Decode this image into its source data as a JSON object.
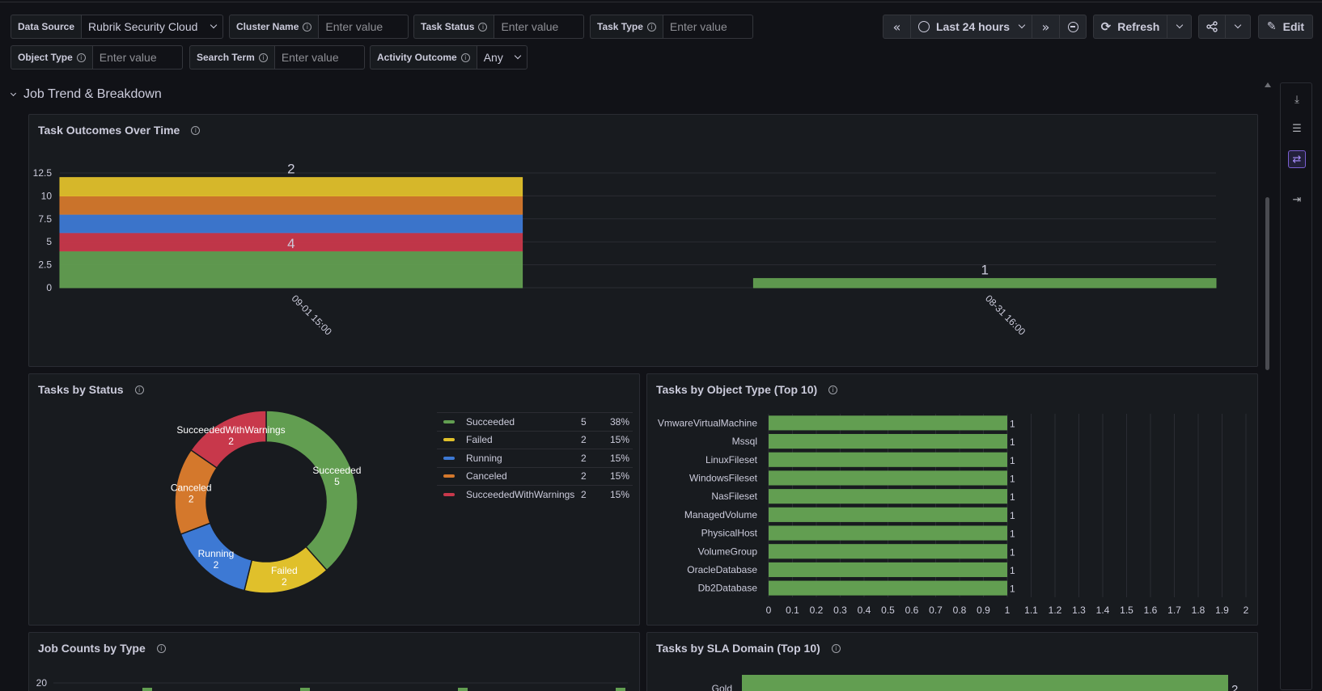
{
  "variables": {
    "data_source": {
      "label": "Data Source",
      "value": "Rubrik Security Cloud"
    },
    "cluster_name": {
      "label": "Cluster Name",
      "placeholder": "Enter value"
    },
    "task_status": {
      "label": "Task Status",
      "placeholder": "Enter value"
    },
    "task_type": {
      "label": "Task Type",
      "placeholder": "Enter value"
    },
    "object_type": {
      "label": "Object Type",
      "placeholder": "Enter value"
    },
    "search_term": {
      "label": "Search Term",
      "placeholder": "Enter value"
    },
    "activity_outcome": {
      "label": "Activity Outcome",
      "value": "Any"
    }
  },
  "toolbar": {
    "time_range": "Last 24 hours",
    "refresh_label": "Refresh",
    "edit_label": "Edit"
  },
  "row": {
    "title": "Job Trend & Breakdown"
  },
  "panels": {
    "outcomes_over_time": {
      "title": "Task Outcomes Over Time"
    },
    "tasks_by_status": {
      "title": "Tasks by Status"
    },
    "tasks_by_object_type": {
      "title": "Tasks by Object Type (Top 10)"
    },
    "job_counts_by_type": {
      "title": "Job Counts by Type"
    },
    "tasks_by_sla_domain": {
      "title": "Tasks by SLA Domain (Top 10)"
    }
  },
  "colors": {
    "green": "#629e51",
    "red": "#c8384b",
    "blue": "#3d79d4",
    "orange": "#d4782c",
    "yellow": "#e0c02b"
  },
  "chart_data": [
    {
      "type": "bar",
      "stacked": true,
      "title": "Task Outcomes Over Time",
      "categories": [
        "09-01 15:00",
        "08-31 16:00"
      ],
      "series": [
        {
          "name": "Succeeded",
          "values": [
            4,
            1
          ],
          "color": "#629e51"
        },
        {
          "name": "Failed",
          "values": [
            2,
            0
          ],
          "color": "#c8384b"
        },
        {
          "name": "Running",
          "values": [
            2,
            0
          ],
          "color": "#3d79d4"
        },
        {
          "name": "Canceled",
          "values": [
            2,
            0
          ],
          "color": "#d4782c"
        },
        {
          "name": "SucceededWithWarnings",
          "values": [
            2,
            0
          ],
          "color": "#e0c02b"
        }
      ],
      "data_labels": [
        {
          "category": "09-01 15:00",
          "text": "2"
        },
        {
          "category": "09-01 15:00",
          "text": "4"
        },
        {
          "category": "08-31 16:00",
          "text": "1"
        }
      ],
      "yticks": [
        "0",
        "2.5",
        "5",
        "7.5",
        "10",
        "12.5"
      ],
      "ylim": [
        0,
        12.5
      ],
      "legend": "bottom"
    },
    {
      "type": "pie",
      "donut": true,
      "title": "Tasks by Status",
      "slices": [
        {
          "name": "Succeeded",
          "value": 5,
          "percent": "38%",
          "color": "#629e51"
        },
        {
          "name": "Failed",
          "value": 2,
          "percent": "15%",
          "color": "#e0c02b"
        },
        {
          "name": "Running",
          "value": 2,
          "percent": "15%",
          "color": "#3d79d4"
        },
        {
          "name": "Canceled",
          "value": 2,
          "percent": "15%",
          "color": "#d4782c"
        },
        {
          "name": "SucceededWithWarnings",
          "value": 2,
          "percent": "15%",
          "color": "#c8384b"
        }
      ],
      "legend": "right"
    },
    {
      "type": "bar",
      "orientation": "horizontal",
      "title": "Tasks by Object Type (Top 10)",
      "categories": [
        "VmwareVirtualMachine",
        "Mssql",
        "LinuxFileset",
        "WindowsFileset",
        "NasFileset",
        "ManagedVolume",
        "PhysicalHost",
        "VolumeGroup",
        "OracleDatabase",
        "Db2Database"
      ],
      "values": [
        1,
        1,
        1,
        1,
        1,
        1,
        1,
        1,
        1,
        1
      ],
      "xticks": [
        "0",
        "0.1",
        "0.2",
        "0.3",
        "0.4",
        "0.5",
        "0.6",
        "0.7",
        "0.8",
        "0.9",
        "1",
        "1.1",
        "1.2",
        "1.3",
        "1.4",
        "1.5",
        "1.6",
        "1.7",
        "1.8",
        "1.9",
        "2"
      ],
      "xlim": [
        0,
        2
      ],
      "color": "#629e51"
    },
    {
      "type": "bar",
      "title": "Job Counts by Type",
      "yticks": [
        "20"
      ]
    },
    {
      "type": "bar",
      "orientation": "horizontal",
      "title": "Tasks by SLA Domain (Top 10)",
      "categories": [
        "Gold"
      ],
      "values": [
        2
      ],
      "color": "#629e51"
    }
  ]
}
